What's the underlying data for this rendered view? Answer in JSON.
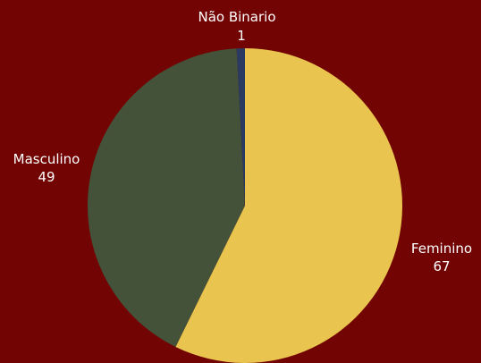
{
  "chart_data": {
    "type": "pie",
    "slices": [
      {
        "label": "Feminino",
        "value": 67,
        "value_text": "67",
        "color": "#e9c44e"
      },
      {
        "label": "Masculino",
        "value": 49,
        "value_text": "49",
        "color": "#435239"
      },
      {
        "label": "Não Binario",
        "value": 1,
        "value_text": "1",
        "color": "#2b3a60"
      }
    ],
    "start": "12 o'clock",
    "direction": "clockwise",
    "labels_outside": true,
    "legend": "none"
  },
  "background_color": "#720404"
}
